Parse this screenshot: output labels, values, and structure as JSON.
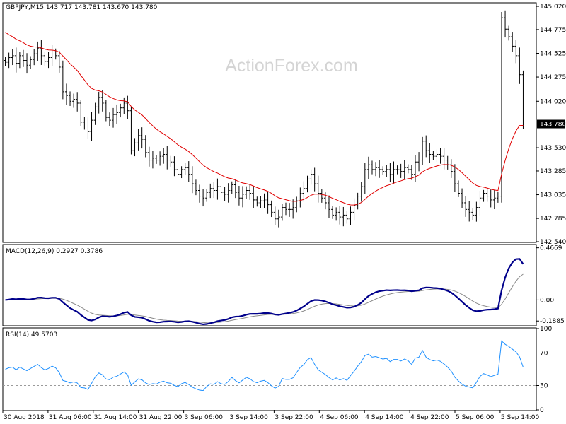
{
  "watermark": "ActionForex.com",
  "chart_data": [
    {
      "type": "ohlc",
      "title": "GBPJPY,M15  143.717 143.781 143.670 143.780",
      "ylim": [
        142.54,
        145.05
      ],
      "y_ticks": [
        "145.020",
        "144.775",
        "144.525",
        "144.275",
        "144.020",
        "143.780",
        "143.530",
        "143.285",
        "143.035",
        "142.785",
        "142.540"
      ],
      "y_tick_values": [
        145.02,
        144.775,
        144.525,
        144.275,
        144.02,
        143.78,
        143.53,
        143.285,
        143.035,
        142.785,
        142.54
      ],
      "current_price": 143.78,
      "current_price_label": "143.780",
      "colors": {
        "bars": "#000000",
        "ma": "#e00000",
        "price_line": "#a0a0a0"
      },
      "price_close": [
        144.43,
        144.48,
        144.5,
        144.42,
        144.5,
        144.45,
        144.4,
        144.46,
        144.52,
        144.58,
        144.5,
        144.44,
        144.48,
        144.54,
        144.5,
        144.38,
        144.12,
        144.08,
        144.02,
        144.04,
        144.0,
        143.8,
        143.78,
        143.7,
        143.82,
        143.96,
        144.06,
        144.0,
        143.85,
        143.82,
        143.88,
        143.9,
        143.95,
        144.0,
        143.92,
        143.5,
        143.58,
        143.66,
        143.62,
        143.48,
        143.4,
        143.42,
        143.4,
        143.44,
        143.46,
        143.4,
        143.38,
        143.3,
        143.25,
        143.3,
        143.32,
        143.25,
        143.15,
        143.08,
        143.02,
        143.0,
        143.06,
        143.1,
        143.08,
        143.12,
        143.06,
        143.04,
        143.08,
        143.14,
        143.06,
        143.0,
        143.04,
        143.08,
        143.05,
        142.98,
        142.95,
        142.97,
        142.98,
        142.93,
        142.85,
        142.78,
        142.8,
        142.9,
        142.88,
        142.88,
        142.9,
        142.97,
        143.05,
        143.1,
        143.2,
        143.25,
        143.15,
        143.05,
        143.0,
        142.95,
        142.88,
        142.82,
        142.85,
        142.8,
        142.82,
        142.78,
        142.85,
        142.92,
        143.02,
        143.12,
        143.3,
        143.35,
        143.3,
        143.32,
        143.3,
        143.28,
        143.3,
        143.25,
        143.3,
        143.3,
        143.28,
        143.32,
        143.3,
        143.25,
        143.38,
        143.4,
        143.6,
        143.5,
        143.46,
        143.44,
        143.46,
        143.44,
        143.4,
        143.35,
        143.28,
        143.15,
        143.05,
        142.95,
        142.88,
        142.85,
        142.82,
        142.9,
        143.0,
        143.05,
        143.02,
        142.98,
        143.0,
        143.02,
        144.9,
        144.78,
        144.7,
        144.6,
        144.5,
        144.3,
        143.78
      ]
    },
    {
      "type": "line",
      "title": "MACD(12,26,9) 0.2927 0.3786",
      "ylim": [
        -0.225,
        0.49
      ],
      "y_ticks": [
        "0.4669",
        "0.00",
        "-0.1885"
      ],
      "y_tick_values": [
        0.4669,
        0,
        -0.1885
      ],
      "zero_line": true,
      "colors": {
        "macd": "#00008b",
        "signal": "#8a8a8a"
      }
    },
    {
      "type": "line",
      "title": "RSI(14) 49.5703",
      "ylim": [
        0,
        100
      ],
      "y_ticks": [
        "100",
        "70",
        "30",
        "0"
      ],
      "y_tick_values": [
        100,
        70,
        30,
        0
      ],
      "levels": [
        70,
        30
      ],
      "colors": {
        "rsi": "#1e90ff"
      },
      "x_ticks": [
        "30 Aug 2018",
        "31 Aug 06:00",
        "31 Aug 14:00",
        "31 Aug 22:00",
        "3 Sep 06:00",
        "3 Sep 14:00",
        "3 Sep 22:00",
        "4 Sep 06:00",
        "4 Sep 14:00",
        "4 Sep 22:00",
        "5 Sep 06:00",
        "5 Sep 14:00"
      ]
    }
  ]
}
